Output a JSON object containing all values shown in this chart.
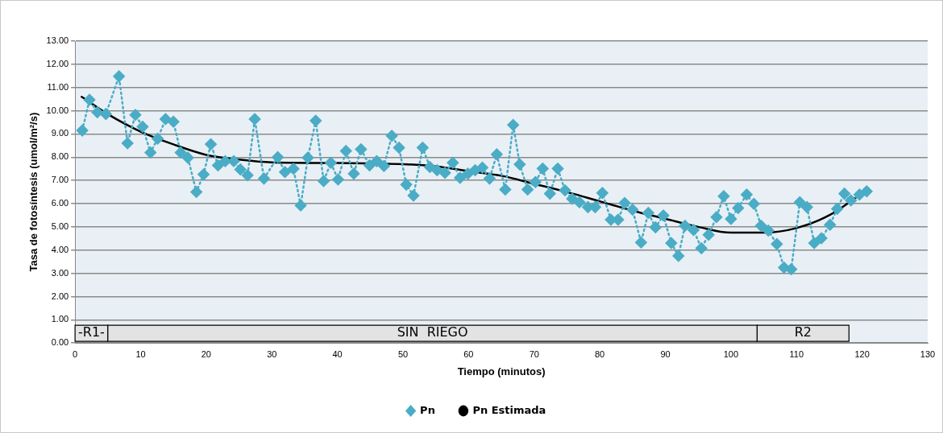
{
  "chart_data": {
    "type": "line",
    "xlabel": "Tiempo (minutos)",
    "ylabel": "Tasa de fotosíntesis (umol/m²/s)",
    "xlim": [
      0,
      130
    ],
    "xticks": [
      0,
      10,
      20,
      30,
      40,
      50,
      60,
      70,
      80,
      90,
      100,
      110,
      120,
      130
    ],
    "ylim": [
      0,
      13
    ],
    "yticks": [
      {
        "value": 0,
        "label": "0.00"
      },
      {
        "value": 1,
        "label": "1.00"
      },
      {
        "value": 2,
        "label": "2.00"
      },
      {
        "value": 3,
        "label": "3.00"
      },
      {
        "value": 4,
        "label": "4.00"
      },
      {
        "value": 5,
        "label": "5.00"
      },
      {
        "value": 6,
        "label": "6.00"
      },
      {
        "value": 7,
        "label": "7.00"
      },
      {
        "value": 8,
        "label": "8.00"
      },
      {
        "value": 9,
        "label": "9.00"
      },
      {
        "value": 10,
        "label": "10.00"
      },
      {
        "value": 11,
        "label": "11.00"
      },
      {
        "value": 12,
        "label": "12.00"
      },
      {
        "value": 13,
        "label": "13.00"
      }
    ],
    "grid": "y",
    "legend": "bottom",
    "series": [
      {
        "name": "Pn",
        "color": "#4bacc6",
        "marker": "diamond",
        "line_style": "dotted",
        "x": [
          1.1,
          2.2,
          3.4,
          4.7,
          6.7,
          8.0,
          9.2,
          10.3,
          11.5,
          12.6,
          13.8,
          15.0,
          16.1,
          17.2,
          18.5,
          19.6,
          20.7,
          21.8,
          22.9,
          24.2,
          25.2,
          26.3,
          27.4,
          28.8,
          30.9,
          32.0,
          33.3,
          34.4,
          35.5,
          36.7,
          37.9,
          39.0,
          40.1,
          41.3,
          42.5,
          43.6,
          44.9,
          46.0,
          47.1,
          48.3,
          49.4,
          50.5,
          51.6,
          53.0,
          54.1,
          55.2,
          56.4,
          57.6,
          58.7,
          59.9,
          61.0,
          62.1,
          63.2,
          64.3,
          65.6,
          66.8,
          67.8,
          69.0,
          70.2,
          71.3,
          72.4,
          73.6,
          74.7,
          75.8,
          76.9,
          78.2,
          79.3,
          80.4,
          81.7,
          82.8,
          83.8,
          85.0,
          86.3,
          87.4,
          88.5,
          89.7,
          90.9,
          92.0,
          93.0,
          94.3,
          95.5,
          96.6,
          97.8,
          98.9,
          100.0,
          101.1,
          102.4,
          103.5,
          104.6,
          105.7,
          107.0,
          108.1,
          109.2,
          110.5,
          111.6,
          112.7,
          113.8,
          115.1,
          116.2,
          117.3,
          118.3,
          119.6,
          120.7
        ],
        "values": [
          9.15,
          10.47,
          9.93,
          9.86,
          11.48,
          8.6,
          9.82,
          9.31,
          8.2,
          8.8,
          9.64,
          9.53,
          8.2,
          7.98,
          6.5,
          7.26,
          8.56,
          7.65,
          7.83,
          7.83,
          7.47,
          7.22,
          9.64,
          7.08,
          8.0,
          7.36,
          7.5,
          5.92,
          7.98,
          9.57,
          6.97,
          7.76,
          7.04,
          8.27,
          7.29,
          8.34,
          7.65,
          7.83,
          7.62,
          8.92,
          8.41,
          6.82,
          6.35,
          8.41,
          7.58,
          7.44,
          7.33,
          7.76,
          7.11,
          7.29,
          7.44,
          7.55,
          7.08,
          8.12,
          6.61,
          9.39,
          7.69,
          6.61,
          6.93,
          7.51,
          6.43,
          7.51,
          6.57,
          6.21,
          6.06,
          5.85,
          5.85,
          6.46,
          5.31,
          5.31,
          6.03,
          5.74,
          4.33,
          5.6,
          4.98,
          5.49,
          4.3,
          3.75,
          5.05,
          4.87,
          4.08,
          4.66,
          5.42,
          6.32,
          5.34,
          5.81,
          6.39,
          5.99,
          5.05,
          4.84,
          4.26,
          3.25,
          3.18,
          6.06,
          5.85,
          4.3,
          4.51,
          5.09,
          5.78,
          6.43,
          6.14,
          6.39,
          6.53
        ]
      },
      {
        "name": "Pn Estimada",
        "color": "#000000",
        "marker": "none",
        "line_style": "solid",
        "x": [
          1,
          5,
          10,
          15,
          20,
          25,
          30,
          40,
          50,
          55,
          60,
          65,
          70,
          75,
          80,
          85,
          90,
          95,
          100,
          105,
          110,
          115,
          121
        ],
        "values": [
          10.6,
          9.85,
          9.1,
          8.55,
          8.1,
          7.9,
          7.78,
          7.75,
          7.7,
          7.6,
          7.4,
          7.2,
          6.85,
          6.5,
          6.1,
          5.7,
          5.35,
          5.0,
          4.75,
          4.75,
          4.95,
          5.5,
          6.65
        ]
      }
    ],
    "bands": [
      {
        "axis": "x",
        "from": 0,
        "to": 5,
        "label": "-R1-",
        "color": "#e3e3e3"
      },
      {
        "axis": "x",
        "from": 5,
        "to": 104,
        "label": "SIN  RIEGO",
        "color": "#e3e3e3"
      },
      {
        "axis": "x",
        "from": 104,
        "to": 118,
        "label": "R2",
        "color": "#e3e3e3"
      }
    ]
  }
}
